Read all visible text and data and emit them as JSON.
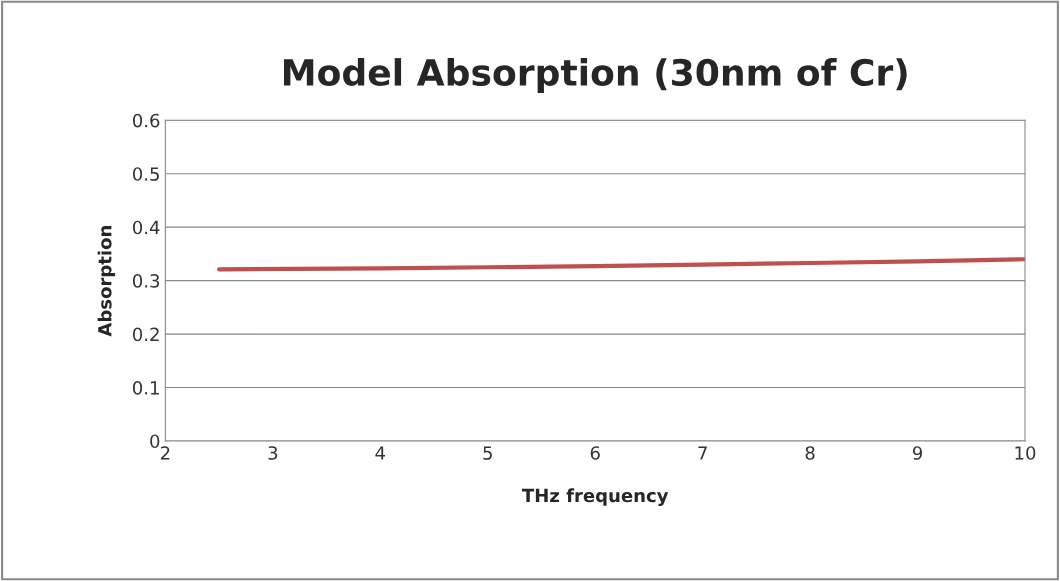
{
  "chart_data": {
    "type": "line",
    "title": "Model Absorption (30nm of Cr)",
    "xlabel": "THz frequency",
    "ylabel": "Absorption",
    "x": [
      2.5,
      4,
      5,
      6,
      7,
      8,
      9,
      10
    ],
    "series": [
      {
        "color": "#c0504d",
        "values": [
          0.321,
          0.323,
          0.325,
          0.327,
          0.33,
          0.333,
          0.336,
          0.34
        ]
      }
    ],
    "xlim": [
      2,
      10
    ],
    "ylim": [
      0,
      0.6
    ],
    "xticks": [
      2,
      3,
      4,
      5,
      6,
      7,
      8,
      9,
      10
    ],
    "yticks": [
      0,
      0.1,
      0.2,
      0.3,
      0.4,
      0.5,
      0.6
    ],
    "grid": "y",
    "legend": false,
    "marker": "none",
    "line_style": "solid"
  }
}
